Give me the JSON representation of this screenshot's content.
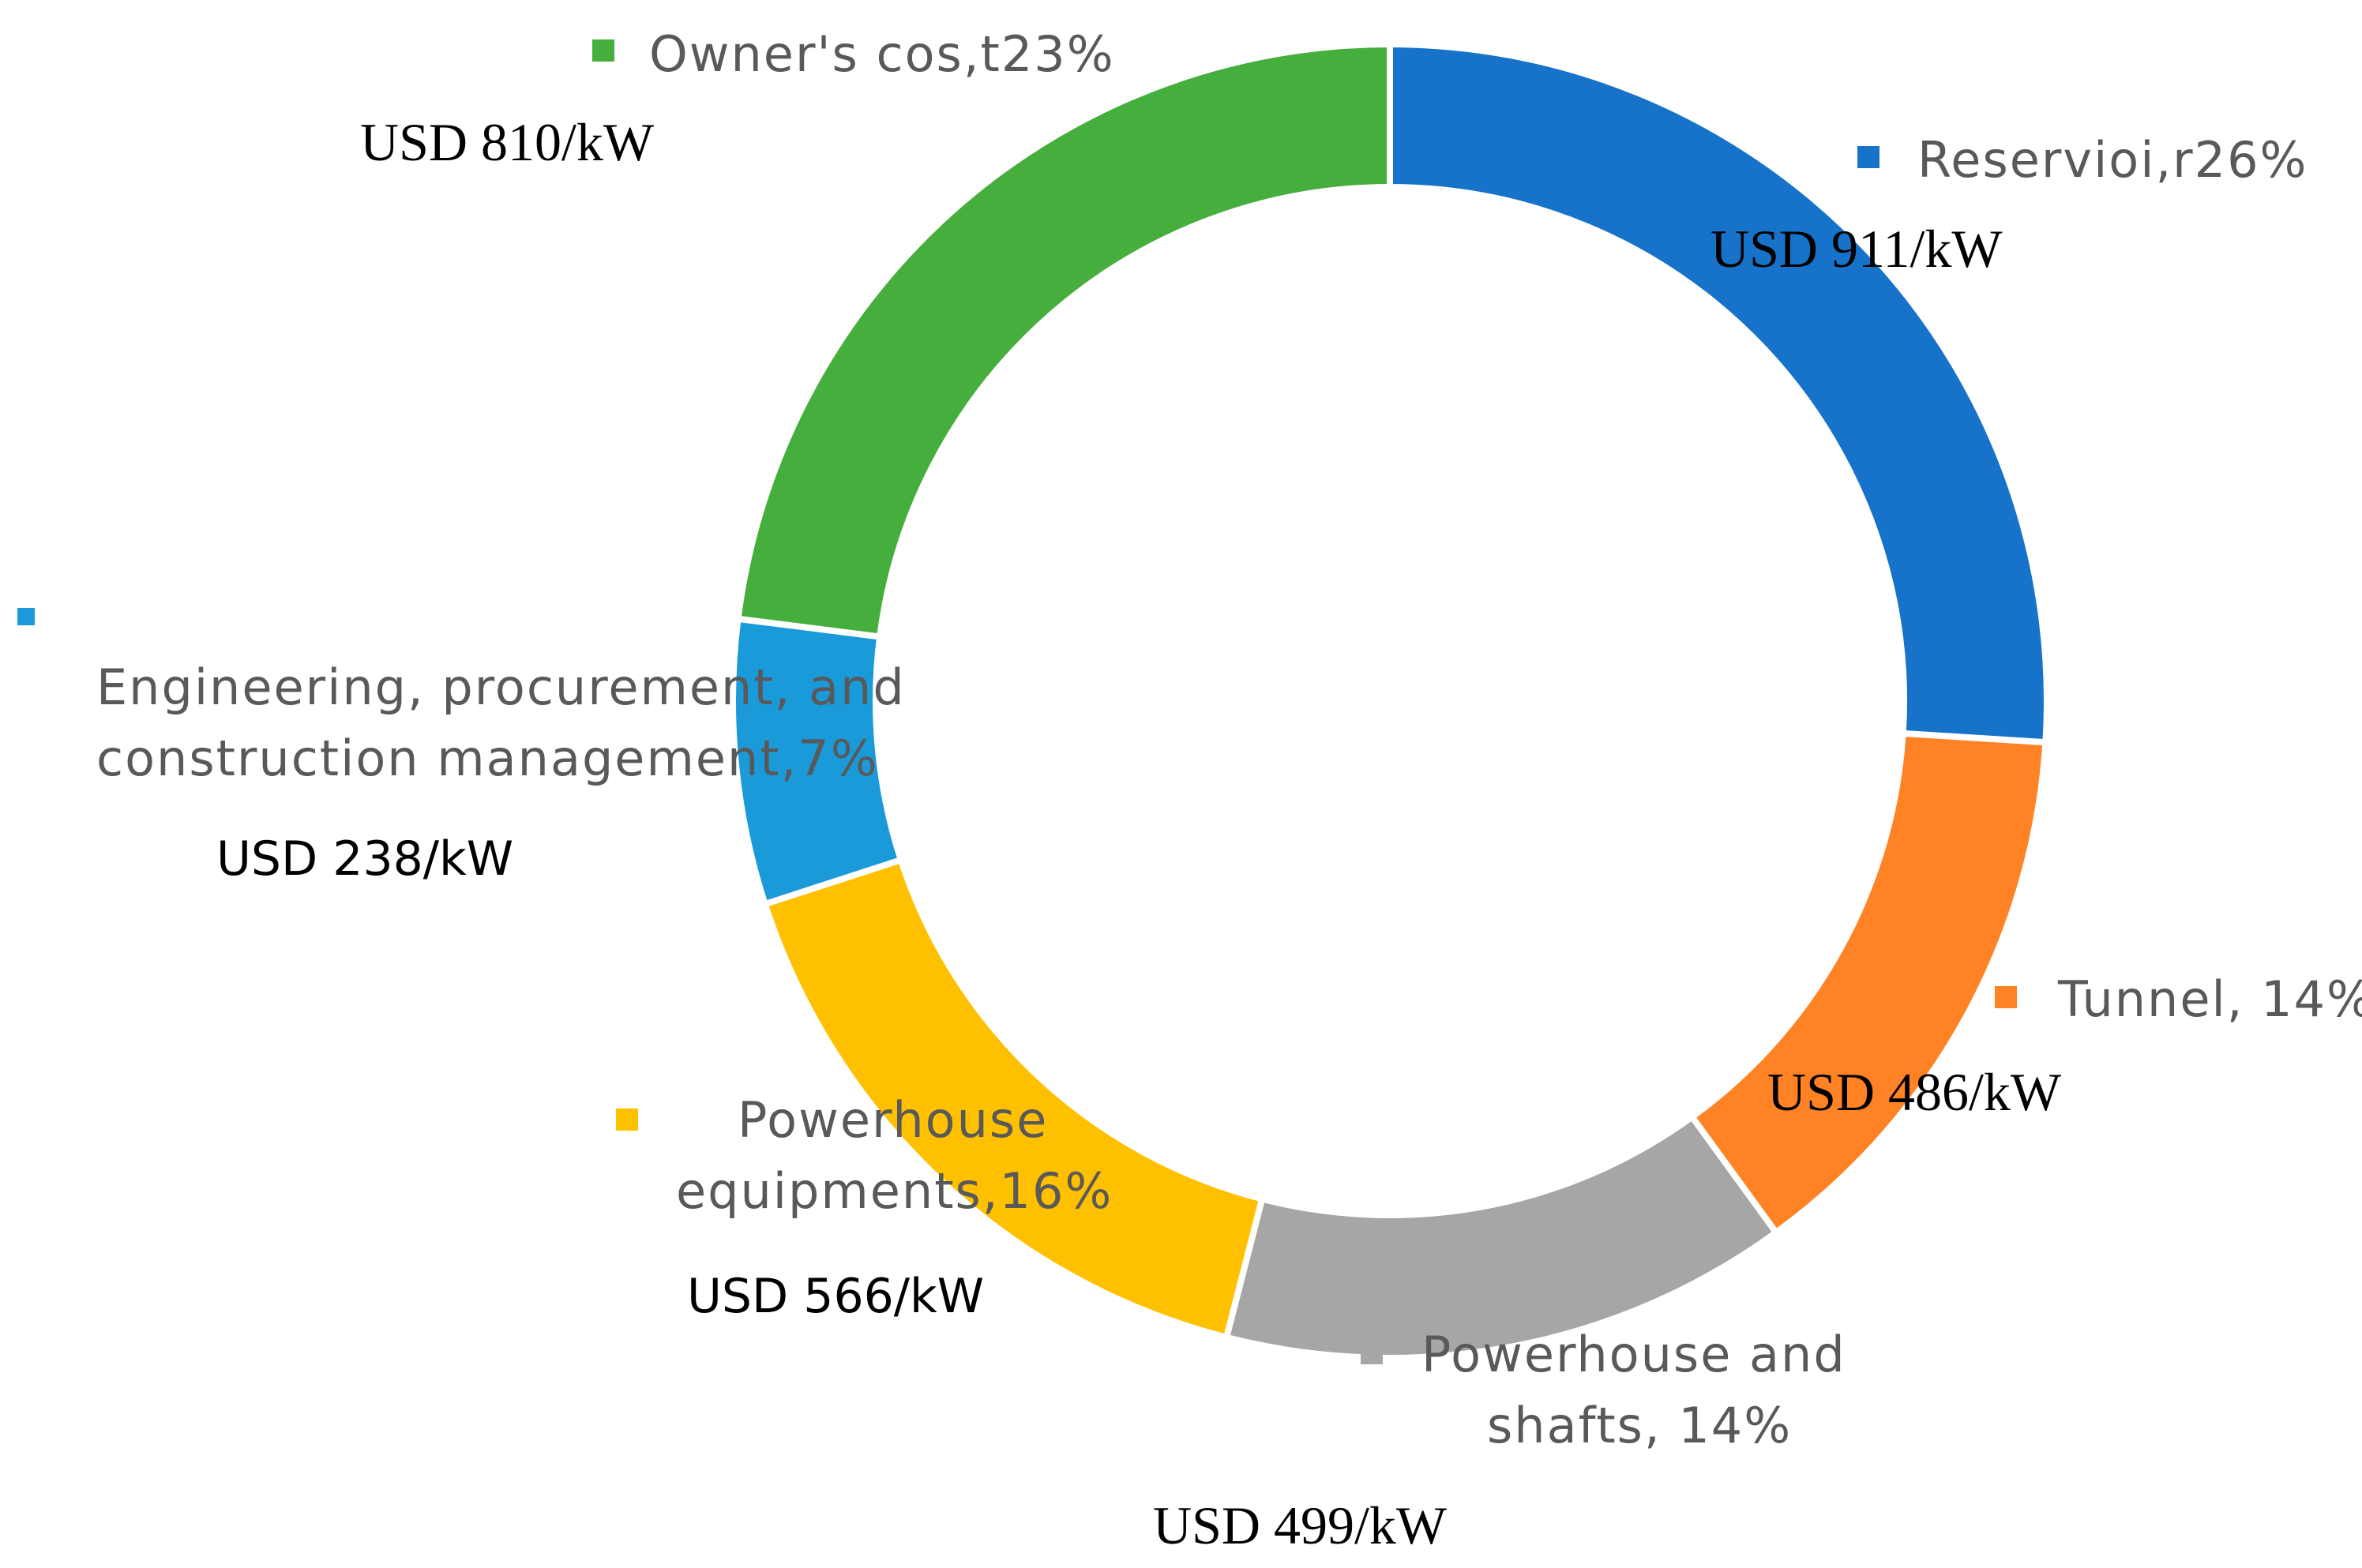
{
  "chart_data": {
    "type": "pie",
    "variant": "donut",
    "legend": "none",
    "slices": [
      {
        "label": "Reservioi,r",
        "percent_text": "26%",
        "value": 26,
        "cost": "USD 911/kW",
        "color": "#1773C9"
      },
      {
        "label": "Tunnel,",
        "percent_text": "14%",
        "value": 14,
        "cost": "USD 486/kW",
        "color": "#FF8225"
      },
      {
        "label": "Powerhouse and shafts,",
        "percent_text": "14%",
        "value": 14,
        "cost": "USD 499/kW",
        "color": "#A6A6A6"
      },
      {
        "label": "Powerhouse equipments,",
        "percent_text": "16%",
        "value": 16,
        "cost": "USD 566/kW",
        "color": "#FFC000"
      },
      {
        "label": "Engineering, procurement, and construction management,",
        "percent_text": "7%",
        "value": 7,
        "cost": "USD 238/kW",
        "color": "#1A9AD8"
      },
      {
        "label": "Owner's cos,t",
        "percent_text": "23%",
        "value": 23,
        "cost": "USD 810/kW",
        "color": "#45AE3C"
      }
    ]
  },
  "labels": {
    "reservoir": {
      "line1": "Reservioi,r26%",
      "cost": "USD 911/kW"
    },
    "tunnel": {
      "line1": "Tunnel, 14%",
      "cost": "USD 486/kW"
    },
    "powerhouse_shafts": {
      "line1": "Powerhouse and",
      "line2": "shafts, 14%",
      "cost": "USD 499/kW"
    },
    "powerhouse_equipment": {
      "line1": "Powerhouse",
      "line2": "equipments,16%",
      "cost": "USD 566/kW"
    },
    "epcm": {
      "line1": "Engineering, procurement, and",
      "line2": "construction management,7%",
      "cost": "USD 238/kW"
    },
    "owner": {
      "line1": "Owner's cos,t23%",
      "cost": "USD 810/kW"
    }
  }
}
